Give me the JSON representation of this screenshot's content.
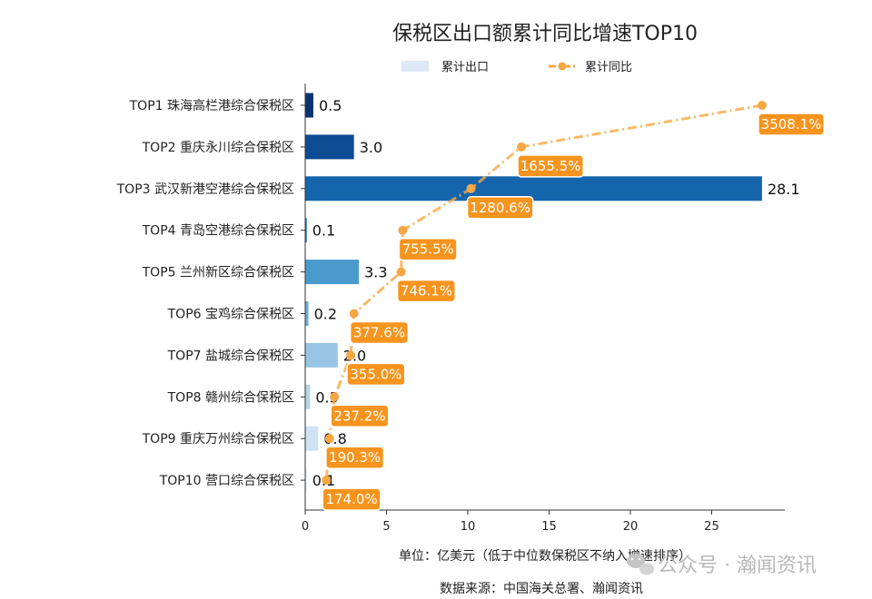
{
  "chart_data": {
    "type": "bar",
    "title": "保税区出口额累计同比增速TOP10",
    "categories": [
      "TOP1 珠海高栏港综合保税区",
      "TOP2 重庆永川综合保税区",
      "TOP3 武汉新港空港综合保税区",
      "TOP4 青岛空港综合保税区",
      "TOP5 兰州新区综合保税区",
      "TOP6 宝鸡综合保税区",
      "TOP7 盐城综合保税区",
      "TOP8 赣州综合保税区",
      "TOP9 重庆万州综合保税区",
      "TOP10 营口综合保税区"
    ],
    "series": [
      {
        "name": "累计出口",
        "values": [
          0.5,
          3.0,
          28.1,
          0.1,
          3.3,
          0.2,
          2.0,
          0.3,
          0.8,
          0.1
        ],
        "labels": [
          "0.5",
          "3.0",
          "28.1",
          "0.1",
          "3.3",
          "0.2",
          "2.0",
          "0.3",
          "0.8",
          "0.1"
        ],
        "colors": [
          "#0b3170",
          "#0d4b93",
          "#1565ad",
          "#2a7bbc",
          "#4a9acd",
          "#6caed9",
          "#98c5e3",
          "#b5d4ec",
          "#cee2f3",
          "#e4eff9"
        ]
      },
      {
        "name": "累计同比",
        "values": [
          3508.1,
          1655.5,
          1280.6,
          755.5,
          746.1,
          377.6,
          355.0,
          237.2,
          190.3,
          174.0
        ],
        "labels": [
          "3508.1%",
          "1655.5%",
          "1280.6%",
          "755.5%",
          "746.1%",
          "377.6%",
          "355.0%",
          "237.2%",
          "190.3%",
          "174.0%"
        ],
        "x_position": [
          28.1,
          13.3,
          10.2,
          6.0,
          5.9,
          3.0,
          2.8,
          1.8,
          1.5,
          1.3
        ],
        "color": "#f7a743"
      }
    ],
    "xlim": [
      0,
      29.5
    ],
    "xticks": [
      "0",
      "5",
      "10",
      "15",
      "20",
      "25"
    ],
    "xlabel": "单位：亿美元（低于中位数保税区不纳入增速排序）",
    "source": "数据来源：中国海关总署、瀚闻资讯",
    "legend": "top-center",
    "grid": false
  },
  "watermark": "公众号 · 瀚闻资讯"
}
